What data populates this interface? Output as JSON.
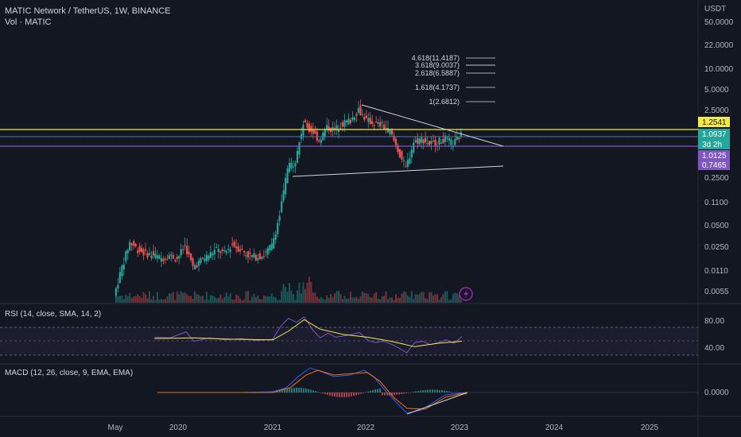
{
  "header": {
    "symbol_line": "MATIC Network / TetherUS, 1W, BINANCE",
    "volume_label": "Vol · MATIC",
    "price_unit": "USDT"
  },
  "chart_data": {
    "type": "candlestick",
    "price_scale": "log",
    "price_ticks": [
      "50.0000",
      "22.0000",
      "10.0000",
      "5.0000",
      "2.5000",
      "0.2500",
      "0.1100",
      "0.0500",
      "0.0250",
      "0.0110",
      "0.0055"
    ],
    "time_ticks": [
      "May",
      "2020",
      "2021",
      "2022",
      "2023",
      "2024",
      "2025"
    ],
    "price_labels": [
      {
        "text": "1.2541",
        "bg": "#f5e94a",
        "fg": "#131722"
      },
      {
        "text": "1.0937",
        "bg": "#26a69a",
        "fg": "#ffffff"
      },
      {
        "text": "3d 2h",
        "bg": "#26a69a",
        "fg": "#ffffff"
      },
      {
        "text": "1.0125",
        "bg": "#7e57c2",
        "fg": "#ffffff"
      },
      {
        "text": "0.7465",
        "bg": "#7e57c2",
        "fg": "#ffffff"
      }
    ],
    "fib_levels": [
      "4.618(11.4187)",
      "3.618(9.0037)",
      "2.618(6.5887)",
      "1.618(4.1737)",
      "1(2.6812)"
    ],
    "price_series": [
      [
        "2019-05",
        0.0045
      ],
      [
        "2019-06",
        0.012
      ],
      [
        "2019-07",
        0.028
      ],
      [
        "2019-08",
        0.022
      ],
      [
        "2019-09",
        0.019
      ],
      [
        "2019-10",
        0.018
      ],
      [
        "2019-11",
        0.016
      ],
      [
        "2019-12",
        0.018
      ],
      [
        "2020-01",
        0.016
      ],
      [
        "2020-02",
        0.025
      ],
      [
        "2020-03",
        0.012
      ],
      [
        "2020-04",
        0.015
      ],
      [
        "2020-05",
        0.018
      ],
      [
        "2020-06",
        0.022
      ],
      [
        "2020-07",
        0.019
      ],
      [
        "2020-08",
        0.026
      ],
      [
        "2020-09",
        0.022
      ],
      [
        "2020-10",
        0.018
      ],
      [
        "2020-11",
        0.017
      ],
      [
        "2020-12",
        0.018
      ],
      [
        "2021-01",
        0.025
      ],
      [
        "2021-02",
        0.07
      ],
      [
        "2021-03",
        0.35
      ],
      [
        "2021-04",
        0.45
      ],
      [
        "2021-05",
        1.6
      ],
      [
        "2021-06",
        1.3
      ],
      [
        "2021-07",
        0.9
      ],
      [
        "2021-08",
        1.4
      ],
      [
        "2021-09",
        1.3
      ],
      [
        "2021-10",
        1.6
      ],
      [
        "2021-11",
        1.8
      ],
      [
        "2021-12",
        2.6
      ],
      [
        "2022-01",
        1.8
      ],
      [
        "2022-02",
        1.6
      ],
      [
        "2022-03",
        1.5
      ],
      [
        "2022-04",
        1.2
      ],
      [
        "2022-05",
        0.65
      ],
      [
        "2022-06",
        0.35
      ],
      [
        "2022-07",
        0.85
      ],
      [
        "2022-08",
        0.95
      ],
      [
        "2022-09",
        0.8
      ],
      [
        "2022-10",
        0.85
      ],
      [
        "2022-11",
        0.95
      ],
      [
        "2022-12",
        0.8
      ],
      [
        "2023-01",
        1.09
      ]
    ],
    "rsi": {
      "label": "RSI (14, close, SMA, 14, 2)",
      "ticks": [
        "80.00",
        "40.00"
      ],
      "series": [
        [
          "2019-10",
          56
        ],
        [
          "2019-12",
          55
        ],
        [
          "2020-02",
          64
        ],
        [
          "2020-03",
          50
        ],
        [
          "2020-05",
          55
        ],
        [
          "2020-07",
          52
        ],
        [
          "2020-09",
          54
        ],
        [
          "2020-11",
          51
        ],
        [
          "2021-01",
          53
        ],
        [
          "2021-02",
          72
        ],
        [
          "2021-03",
          84
        ],
        [
          "2021-04",
          78
        ],
        [
          "2021-05",
          86
        ],
        [
          "2021-06",
          68
        ],
        [
          "2021-07",
          55
        ],
        [
          "2021-08",
          62
        ],
        [
          "2021-09",
          56
        ],
        [
          "2021-10",
          58
        ],
        [
          "2021-11",
          60
        ],
        [
          "2021-12",
          63
        ],
        [
          "2022-01",
          52
        ],
        [
          "2022-02",
          48
        ],
        [
          "2022-03",
          50
        ],
        [
          "2022-04",
          46
        ],
        [
          "2022-05",
          40
        ],
        [
          "2022-06",
          33
        ],
        [
          "2022-07",
          48
        ],
        [
          "2022-08",
          50
        ],
        [
          "2022-09",
          45
        ],
        [
          "2022-10",
          48
        ],
        [
          "2022-11",
          52
        ],
        [
          "2022-12",
          47
        ],
        [
          "2023-01",
          57
        ]
      ],
      "ma": [
        [
          "2019-10",
          54
        ],
        [
          "2020-03",
          55
        ],
        [
          "2020-08",
          53
        ],
        [
          "2021-01",
          52
        ],
        [
          "2021-03",
          65
        ],
        [
          "2021-05",
          82
        ],
        [
          "2021-07",
          68
        ],
        [
          "2021-10",
          60
        ],
        [
          "2022-01",
          56
        ],
        [
          "2022-04",
          50
        ],
        [
          "2022-07",
          42
        ],
        [
          "2022-10",
          47
        ],
        [
          "2023-01",
          50
        ]
      ]
    },
    "macd": {
      "label": "MACD (12, 26, close, 9, EMA, EMA)",
      "ticks": [
        "0.0000"
      ]
    }
  }
}
